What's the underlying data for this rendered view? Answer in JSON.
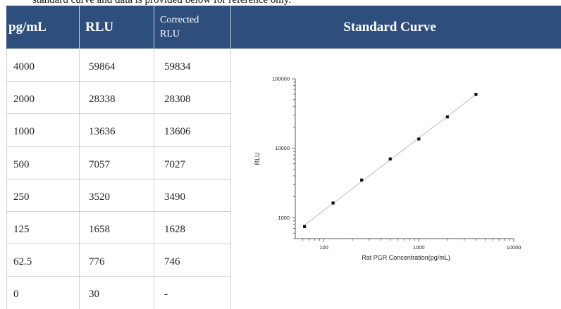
{
  "caption": "standard curve and data is provided below for reference only.",
  "table": {
    "headers": {
      "pg": "pg/mL",
      "rlu": "RLU",
      "corrected_line1": "Corrected",
      "corrected_line2": "RLU",
      "curve": "Standard Curve"
    },
    "rows": [
      {
        "pg": "4000",
        "rlu": "59864",
        "corrected": "59834"
      },
      {
        "pg": "2000",
        "rlu": "28338",
        "corrected": "28308"
      },
      {
        "pg": "1000",
        "rlu": "13636",
        "corrected": "13606"
      },
      {
        "pg": "500",
        "rlu": "7057",
        "corrected": "7027"
      },
      {
        "pg": "250",
        "rlu": "3520",
        "corrected": "3490"
      },
      {
        "pg": "125",
        "rlu": "1658",
        "corrected": "1628"
      },
      {
        "pg": "62.5",
        "rlu": "776",
        "corrected": "746"
      },
      {
        "pg": "0",
        "rlu": "30",
        "corrected": "-"
      }
    ]
  },
  "chart_data": {
    "type": "scatter",
    "title": "",
    "xlabel": "Rat PGR Concentration(pg/mL)",
    "ylabel": "RLU",
    "xscale": "log",
    "yscale": "log",
    "xlim": [
      50,
      10000
    ],
    "ylim": [
      500,
      100000
    ],
    "xticks": [
      "100",
      "1000",
      "10000"
    ],
    "yticks": [
      "1000",
      "10000",
      "100000"
    ],
    "x": [
      62.5,
      125,
      250,
      500,
      1000,
      2000,
      4000
    ],
    "y": [
      746,
      1628,
      3490,
      7027,
      13606,
      28308,
      59834
    ],
    "fit_line": true,
    "grid": false,
    "legend": "none",
    "colors": {
      "marker": "#111111",
      "fit_line": "#b5b5b5",
      "axis": "#555555"
    }
  }
}
